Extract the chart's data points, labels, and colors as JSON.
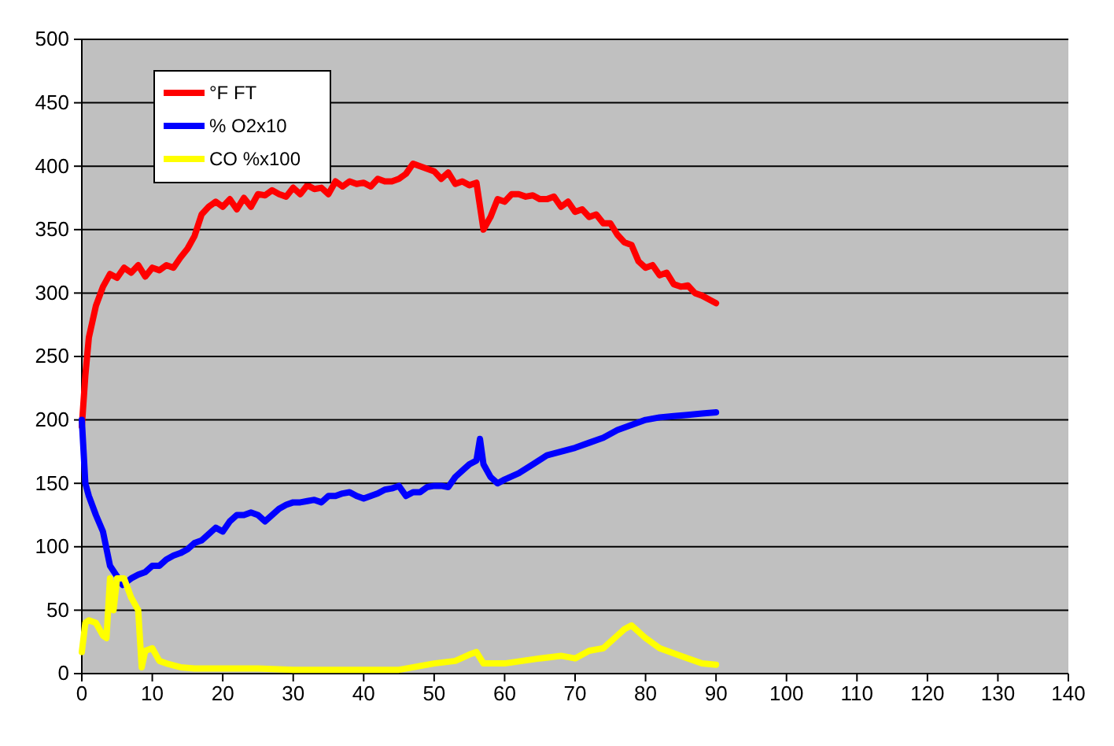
{
  "chart_data": {
    "type": "line",
    "xlim": [
      0,
      140
    ],
    "xticks": [
      0,
      10,
      20,
      30,
      40,
      50,
      60,
      70,
      80,
      90,
      100,
      110,
      120,
      130,
      140
    ],
    "ylim": [
      0,
      500
    ],
    "yticks": [
      0,
      50,
      100,
      150,
      200,
      250,
      300,
      350,
      400,
      450,
      500
    ],
    "grid": "y",
    "legend": "top left",
    "marker": "none",
    "line_style": "solid",
    "series": [
      {
        "name": "°F FT",
        "color": "#ff0000",
        "x": [
          0,
          0.5,
          1,
          2,
          3,
          4,
          5,
          6,
          7,
          8,
          9,
          10,
          11,
          12,
          13,
          14,
          15,
          16,
          17,
          18,
          19,
          20,
          21,
          22,
          23,
          24,
          25,
          26,
          27,
          28,
          29,
          30,
          31,
          32,
          33,
          34,
          35,
          36,
          37,
          38,
          39,
          40,
          41,
          42,
          43,
          44,
          45,
          46,
          47,
          48,
          49,
          50,
          51,
          52,
          53,
          54,
          55,
          56,
          57,
          58,
          59,
          60,
          61,
          62,
          63,
          64,
          65,
          66,
          67,
          68,
          69,
          70,
          71,
          72,
          73,
          74,
          75,
          76,
          77,
          78,
          79,
          80,
          81,
          82,
          83,
          84,
          85,
          86,
          87,
          88,
          89,
          90
        ],
        "values": [
          195,
          235,
          265,
          290,
          305,
          315,
          312,
          320,
          316,
          322,
          313,
          320,
          318,
          322,
          320,
          328,
          335,
          345,
          362,
          368,
          372,
          368,
          374,
          366,
          375,
          368,
          378,
          377,
          381,
          378,
          376,
          383,
          378,
          385,
          382,
          383,
          378,
          388,
          384,
          388,
          386,
          387,
          384,
          390,
          388,
          388,
          390,
          394,
          402,
          400,
          398,
          396,
          390,
          395,
          386,
          388,
          385,
          387,
          350,
          360,
          374,
          372,
          378,
          378,
          376,
          377,
          374,
          374,
          376,
          368,
          372,
          364,
          366,
          360,
          362,
          355,
          355,
          346,
          340,
          338,
          325,
          320,
          322,
          314,
          316,
          307,
          305,
          306,
          300,
          298,
          295,
          292
        ]
      },
      {
        "name": "% O2x10",
        "color": "#0000ff",
        "x": [
          0,
          0.5,
          1,
          2,
          3,
          4,
          5.8,
          7,
          8,
          9,
          10,
          11,
          12,
          13,
          14,
          15,
          16,
          17,
          18,
          19,
          20,
          21,
          22,
          23,
          24,
          25,
          26,
          27,
          28,
          29,
          30,
          31,
          32,
          33,
          34,
          35,
          36,
          37,
          38,
          39,
          40,
          41,
          42,
          43,
          44,
          45,
          46,
          47,
          48,
          49,
          50,
          51,
          52,
          53,
          54,
          55,
          56,
          56.5,
          57,
          58,
          59,
          60,
          62,
          64,
          66,
          68,
          70,
          72,
          74,
          76,
          78,
          80,
          82,
          84,
          86,
          88,
          90
        ],
        "values": [
          200,
          150,
          140,
          125,
          112,
          85,
          70,
          75,
          78,
          80,
          85,
          85,
          90,
          93,
          95,
          98,
          103,
          105,
          110,
          115,
          112,
          120,
          125,
          125,
          127,
          125,
          120,
          125,
          130,
          133,
          135,
          135,
          136,
          137,
          135,
          140,
          140,
          142,
          143,
          140,
          138,
          140,
          142,
          145,
          146,
          148,
          140,
          143,
          143,
          147,
          148,
          148,
          147,
          155,
          160,
          165,
          168,
          185,
          165,
          155,
          150,
          153,
          158,
          165,
          172,
          175,
          178,
          182,
          186,
          192,
          196,
          200,
          202,
          203,
          204,
          205,
          206
        ]
      },
      {
        "name": "CO %x100",
        "color": "#ffff00",
        "x": [
          0,
          0.5,
          1,
          2,
          3,
          3.5,
          4,
          4.5,
          5,
          6,
          7,
          8,
          8.5,
          9,
          10,
          11,
          12,
          14,
          16,
          20,
          25,
          30,
          35,
          40,
          45,
          50,
          53,
          55,
          56,
          57,
          60,
          65,
          68,
          70,
          72,
          74,
          76,
          77,
          78,
          80,
          82,
          85,
          88,
          90
        ],
        "values": [
          17,
          40,
          42,
          40,
          30,
          28,
          75,
          50,
          75,
          75,
          60,
          50,
          5,
          18,
          20,
          10,
          8,
          5,
          4,
          4,
          4,
          3,
          3,
          3,
          3,
          8,
          10,
          15,
          17,
          8,
          8,
          12,
          14,
          12,
          18,
          20,
          30,
          35,
          38,
          28,
          20,
          14,
          8,
          7
        ]
      }
    ]
  }
}
